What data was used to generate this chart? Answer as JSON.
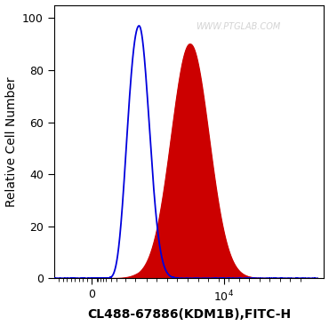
{
  "xlabel": "CL488-67886(KDM1B),FITC-H",
  "ylabel": "Relative Cell Number",
  "ylim": [
    0,
    105
  ],
  "yticks": [
    0,
    20,
    40,
    60,
    80,
    100
  ],
  "watermark": "WWW.PTGLAB.COM",
  "watermark_color": "#cccccc",
  "blue_peak_log": 3.0,
  "blue_peak_y": 97,
  "blue_sigma_log": 0.12,
  "red_peak_log": 3.6,
  "red_peak_y": 90,
  "red_sigma_log": 0.22,
  "blue_color": "#0000dd",
  "red_color": "#cc0000",
  "bg_color": "#ffffff",
  "label_fontsize": 10,
  "tick_fontsize": 9,
  "watermark_fontsize": 7,
  "linthresh": 1000,
  "xlim_left": -800,
  "xlim_right": 150000
}
